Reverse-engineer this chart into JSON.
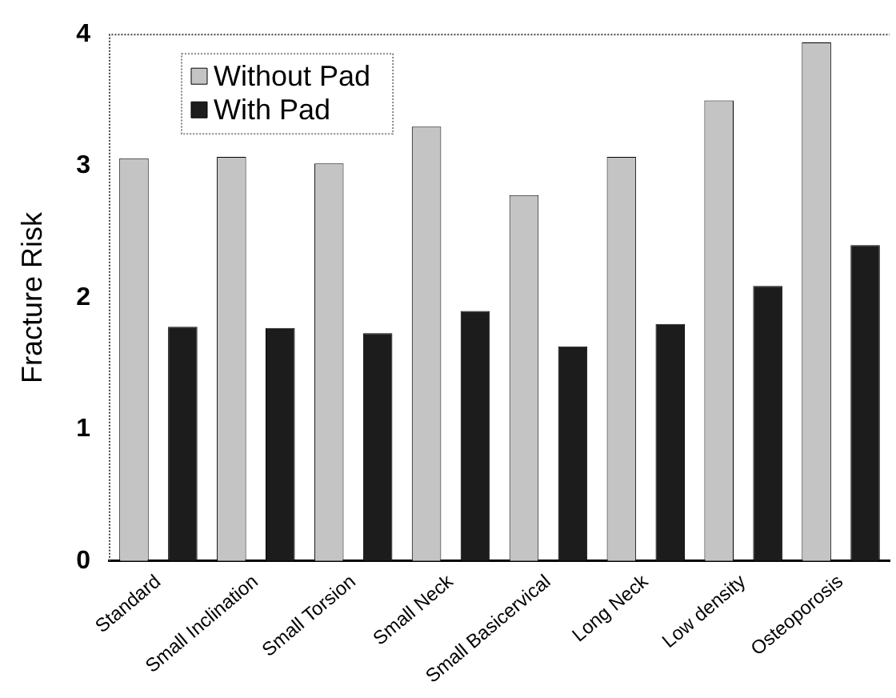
{
  "chart_data": {
    "type": "bar",
    "ylabel": "Fracture Risk",
    "categories": [
      "Standard",
      "Small Inclination",
      "Small Torsion",
      "Small Neck",
      "Small Basicervical",
      "Long Neck",
      "Low density",
      "Osteoporosis"
    ],
    "series": [
      {
        "name": "Without Pad",
        "color": "#c4c4c4",
        "values": [
          3.06,
          3.07,
          3.02,
          3.3,
          2.78,
          3.07,
          3.5,
          3.94
        ]
      },
      {
        "name": "With Pad",
        "color": "#1c1c1c",
        "values": [
          1.78,
          1.77,
          1.73,
          1.9,
          1.63,
          1.8,
          2.09,
          2.4
        ]
      }
    ],
    "ylim": [
      0,
      4
    ],
    "yticks": [
      0,
      1,
      2,
      3,
      4
    ],
    "legend": "top left"
  }
}
